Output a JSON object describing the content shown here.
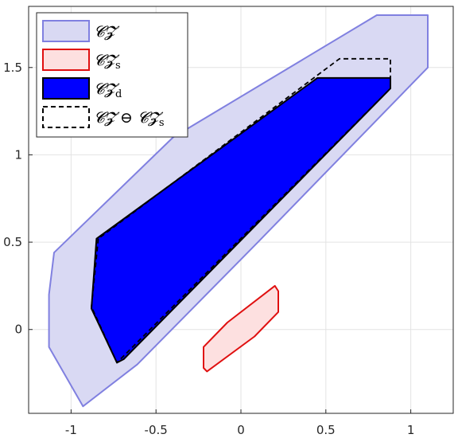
{
  "chart_data": {
    "type": "polygon-plot",
    "xlim": [
      -1.25,
      1.25
    ],
    "ylim": [
      -0.48,
      1.85
    ],
    "xticks": [
      {
        "value": -1,
        "label": "-1"
      },
      {
        "value": -0.5,
        "label": "-0.5"
      },
      {
        "value": 0,
        "label": "0"
      },
      {
        "value": 0.5,
        "label": "0.5"
      },
      {
        "value": 1,
        "label": "1"
      }
    ],
    "yticks": [
      {
        "value": 0,
        "label": "0"
      },
      {
        "value": 0.5,
        "label": "0.5"
      },
      {
        "value": 1,
        "label": "1"
      },
      {
        "value": 1.5,
        "label": "1.5"
      }
    ],
    "grid": true,
    "legend_position": "top-left",
    "series": [
      {
        "id": "cz",
        "fill": "#d9d9f3",
        "stroke": "#8080e0",
        "dashed": false,
        "points": [
          [
            -1.1,
            0.44
          ],
          [
            -1.13,
            0.2
          ],
          [
            -1.13,
            -0.1
          ],
          [
            -0.93,
            -0.44
          ],
          [
            -0.61,
            -0.2
          ],
          [
            0.1,
            0.5
          ],
          [
            1.1,
            1.5
          ],
          [
            1.1,
            1.8
          ],
          [
            0.8,
            1.8
          ],
          [
            -0.4,
            1.1
          ]
        ]
      },
      {
        "id": "czs",
        "fill": "#fde0e0",
        "stroke": "#e01010",
        "dashed": false,
        "points": [
          [
            -0.22,
            -0.1
          ],
          [
            -0.08,
            0.04
          ],
          [
            0.2,
            0.25
          ],
          [
            0.22,
            0.22
          ],
          [
            0.22,
            0.1
          ],
          [
            0.08,
            -0.04
          ],
          [
            -0.2,
            -0.24
          ],
          [
            -0.22,
            -0.22
          ]
        ]
      },
      {
        "id": "czd",
        "fill": "#0000ff",
        "stroke": "#000000",
        "dashed": false,
        "points": [
          [
            -0.85,
            0.52
          ],
          [
            -0.88,
            0.12
          ],
          [
            -0.73,
            -0.19
          ],
          [
            -0.69,
            -0.17
          ],
          [
            0.88,
            1.38
          ],
          [
            0.88,
            1.44
          ],
          [
            0.45,
            1.44
          ]
        ]
      },
      {
        "id": "diff",
        "fill": "none",
        "stroke": "#000000",
        "dashed": true,
        "points": [
          [
            -0.84,
            0.52
          ],
          [
            -0.88,
            0.13
          ],
          [
            -0.73,
            -0.19
          ],
          [
            0.88,
            1.38
          ],
          [
            0.88,
            1.55
          ],
          [
            0.58,
            1.55
          ]
        ]
      }
    ],
    "legend": [
      {
        "series": "cz",
        "label": "𝓒𝓩",
        "sub": ""
      },
      {
        "series": "czs",
        "label": "𝓒𝓩",
        "sub": "s"
      },
      {
        "series": "czd",
        "label": "𝓒𝓩",
        "sub": "d"
      },
      {
        "series": "diff",
        "label": "𝓒𝓩 ⊖ 𝓒𝓩",
        "sub": "s"
      }
    ]
  }
}
